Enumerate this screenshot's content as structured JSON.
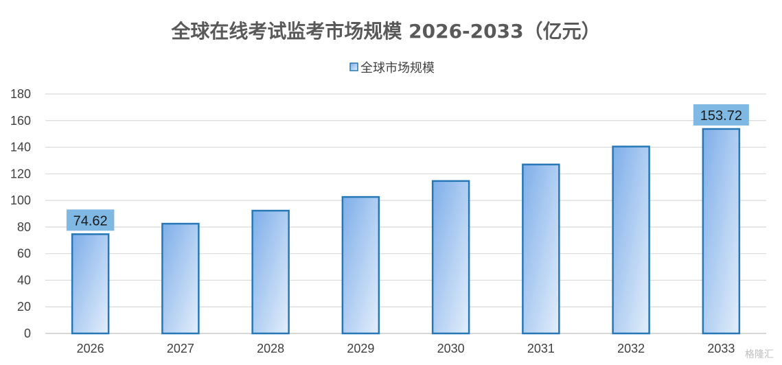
{
  "chart_data": {
    "type": "bar",
    "title": "全球在线考试监考市场规模 2026-2033（亿元）",
    "categories": [
      "2026",
      "2027",
      "2028",
      "2029",
      "2030",
      "2031",
      "2032",
      "2033"
    ],
    "series": [
      {
        "name": "全球市场规模",
        "values": [
          74.62,
          82.5,
          92.3,
          102.6,
          114.6,
          127.0,
          140.5,
          153.72
        ]
      }
    ],
    "data_labels": [
      {
        "index": 0,
        "text": "74.62"
      },
      {
        "index": 7,
        "text": "153.72"
      }
    ],
    "ylim": [
      0,
      180
    ],
    "yticks": [
      0,
      20,
      40,
      60,
      80,
      100,
      120,
      140,
      160,
      180
    ],
    "xlabel": "",
    "ylabel": "",
    "grid": true,
    "legend_position": "top",
    "colors": {
      "bar_fill_start": "#7eaee9",
      "bar_fill_end": "#e3eefb",
      "bar_stroke": "#2577b5",
      "label_bg": "#7fb8e3",
      "grid": "#d9d9d9",
      "axis": "#bfbfbf"
    }
  },
  "watermark": "格隆汇"
}
